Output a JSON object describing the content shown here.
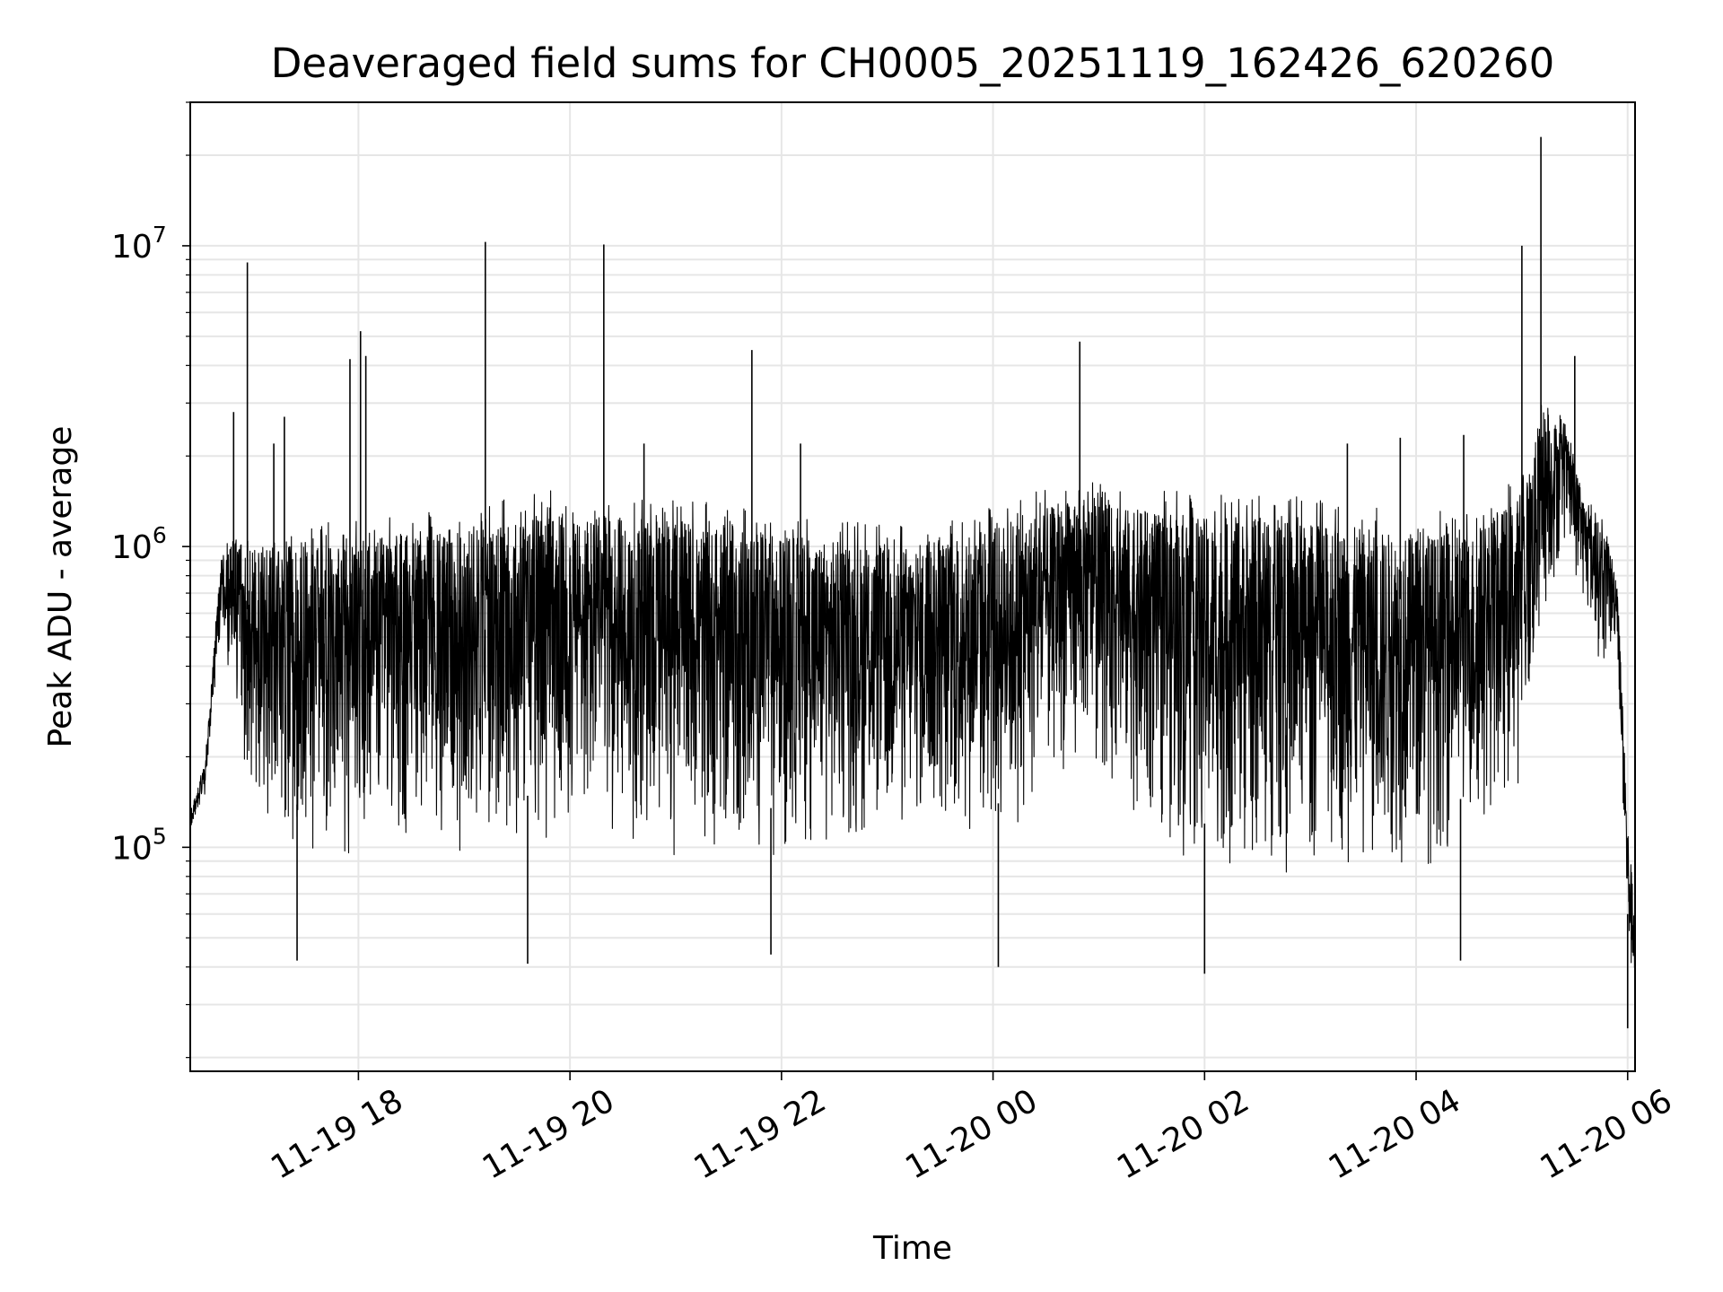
{
  "chart_data": {
    "type": "line",
    "title": "Deaveraged field sums for CH0005_20251119_162426_620260",
    "xlabel": "Time",
    "ylabel": "Peak ADU - average",
    "yscale": "log",
    "ylim": [
      18000,
      30000000
    ],
    "xlim_hours": [
      16.41,
      30.07
    ],
    "grid": true,
    "line_color": "#000000",
    "grid_color": "#e6e6e6",
    "x_ticks": [
      {
        "hour": 18,
        "label": "11-19 18"
      },
      {
        "hour": 20,
        "label": "11-19 20"
      },
      {
        "hour": 22,
        "label": "11-19 22"
      },
      {
        "hour": 24,
        "label": "11-20 00"
      },
      {
        "hour": 26,
        "label": "11-20 02"
      },
      {
        "hour": 28,
        "label": "11-20 04"
      },
      {
        "hour": 30,
        "label": "11-20 06"
      }
    ],
    "y_ticks": [
      {
        "value": 100000,
        "base": "10",
        "exp": "5"
      },
      {
        "value": 1000000,
        "base": "10",
        "exp": "6"
      },
      {
        "value": 10000000,
        "base": "10",
        "exp": "7"
      }
    ],
    "envelope": {
      "hours": [
        16.41,
        16.55,
        16.7,
        16.85,
        17.0,
        17.2,
        17.5,
        18.0,
        18.5,
        19.0,
        19.5,
        20.0,
        20.5,
        21.0,
        21.5,
        22.0,
        22.5,
        23.0,
        23.5,
        24.0,
        24.4,
        24.8,
        25.0,
        25.5,
        26.0,
        26.5,
        27.0,
        27.5,
        28.0,
        28.5,
        29.0,
        29.2,
        29.4,
        29.6,
        29.8,
        29.9,
        30.0,
        30.07
      ],
      "upper": [
        130000,
        190000,
        900000,
        1100000,
        1000000,
        1000000,
        1000000,
        1050000,
        1100000,
        1150000,
        1250000,
        1300000,
        1250000,
        1200000,
        1150000,
        1100000,
        1050000,
        1000000,
        1050000,
        1200000,
        1300000,
        1450000,
        1400000,
        1300000,
        1250000,
        1250000,
        1200000,
        1150000,
        1100000,
        1100000,
        1500000,
        2800000,
        2500000,
        1400000,
        1100000,
        800000,
        120000,
        60000
      ],
      "lower": [
        110000,
        150000,
        500000,
        250000,
        120000,
        100000,
        90000,
        90000,
        90000,
        95000,
        100000,
        95000,
        95000,
        90000,
        90000,
        90000,
        95000,
        95000,
        100000,
        90000,
        120000,
        200000,
        180000,
        100000,
        80000,
        75000,
        80000,
        80000,
        80000,
        100000,
        150000,
        500000,
        1000000,
        600000,
        350000,
        500000,
        40000,
        30000
      ]
    },
    "spikes": [
      {
        "hour": 16.95,
        "value": 8800000
      },
      {
        "hour": 16.82,
        "value": 2800000
      },
      {
        "hour": 17.3,
        "value": 2700000
      },
      {
        "hour": 17.2,
        "value": 2200000
      },
      {
        "hour": 17.92,
        "value": 4200000
      },
      {
        "hour": 18.02,
        "value": 5200000
      },
      {
        "hour": 18.07,
        "value": 4300000
      },
      {
        "hour": 19.2,
        "value": 10300000
      },
      {
        "hour": 20.32,
        "value": 10100000
      },
      {
        "hour": 20.7,
        "value": 2200000
      },
      {
        "hour": 21.72,
        "value": 4500000
      },
      {
        "hour": 22.18,
        "value": 2200000
      },
      {
        "hour": 24.82,
        "value": 4800000
      },
      {
        "hour": 27.35,
        "value": 2200000
      },
      {
        "hour": 27.85,
        "value": 2300000
      },
      {
        "hour": 28.45,
        "value": 2350000
      },
      {
        "hour": 29.0,
        "value": 10000000
      },
      {
        "hour": 29.18,
        "value": 23000000
      },
      {
        "hour": 29.5,
        "value": 4300000
      }
    ],
    "dips": [
      {
        "hour": 17.42,
        "value": 42000
      },
      {
        "hour": 19.6,
        "value": 41000
      },
      {
        "hour": 21.9,
        "value": 44000
      },
      {
        "hour": 24.05,
        "value": 40000
      },
      {
        "hour": 26.0,
        "value": 38000
      },
      {
        "hour": 28.42,
        "value": 42000
      },
      {
        "hour": 30.0,
        "value": 25000
      }
    ]
  }
}
